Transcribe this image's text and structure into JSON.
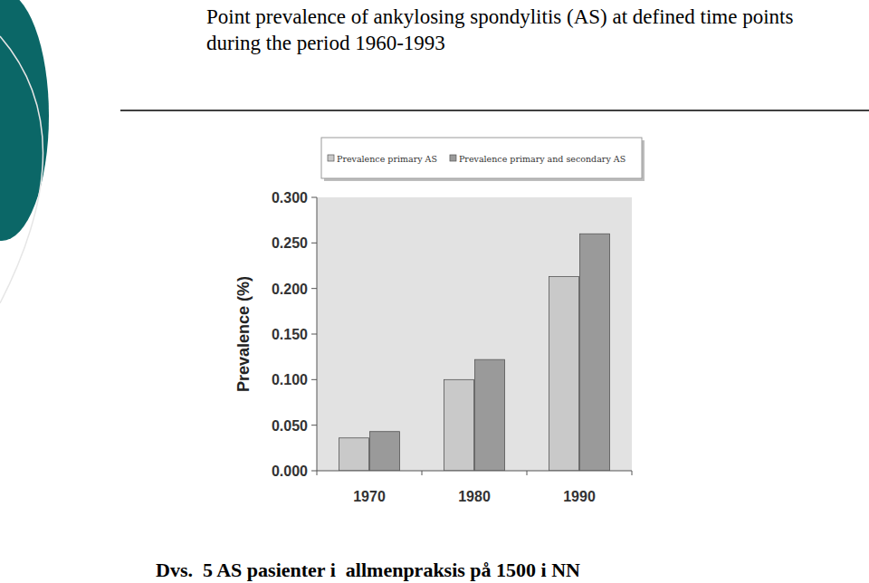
{
  "chart_data": {
    "type": "bar",
    "title": "Point prevalence of ankylosing spondylitis (AS) at defined time points during the period 1960-1993",
    "ylabel": "Prevalence (%)",
    "annotation": "Dvs.  5 AS pasienter i  allmenpraksis på 1500 i NN",
    "categories": [
      "1970",
      "1980",
      "1990"
    ],
    "series": [
      {
        "name": "Prevalence primary AS",
        "color": "#c9c9c9",
        "values": [
          0.036,
          0.1,
          0.213
        ]
      },
      {
        "name": "Prevalence primary and secondary AS",
        "color": "#9a9a9a",
        "values": [
          0.043,
          0.122,
          0.26
        ]
      }
    ],
    "ylim": [
      0,
      0.3
    ],
    "yticks": [
      {
        "value": 0,
        "label": "0.000"
      },
      {
        "value": 0.05,
        "label": "0.050"
      },
      {
        "value": 0.1,
        "label": "0.100"
      },
      {
        "value": 0.15,
        "label": "0.150"
      },
      {
        "value": 0.2,
        "label": "0.200"
      },
      {
        "value": 0.25,
        "label": "0.250"
      },
      {
        "value": 0.3,
        "label": "0.300"
      }
    ],
    "grid": false,
    "legend": "top"
  }
}
